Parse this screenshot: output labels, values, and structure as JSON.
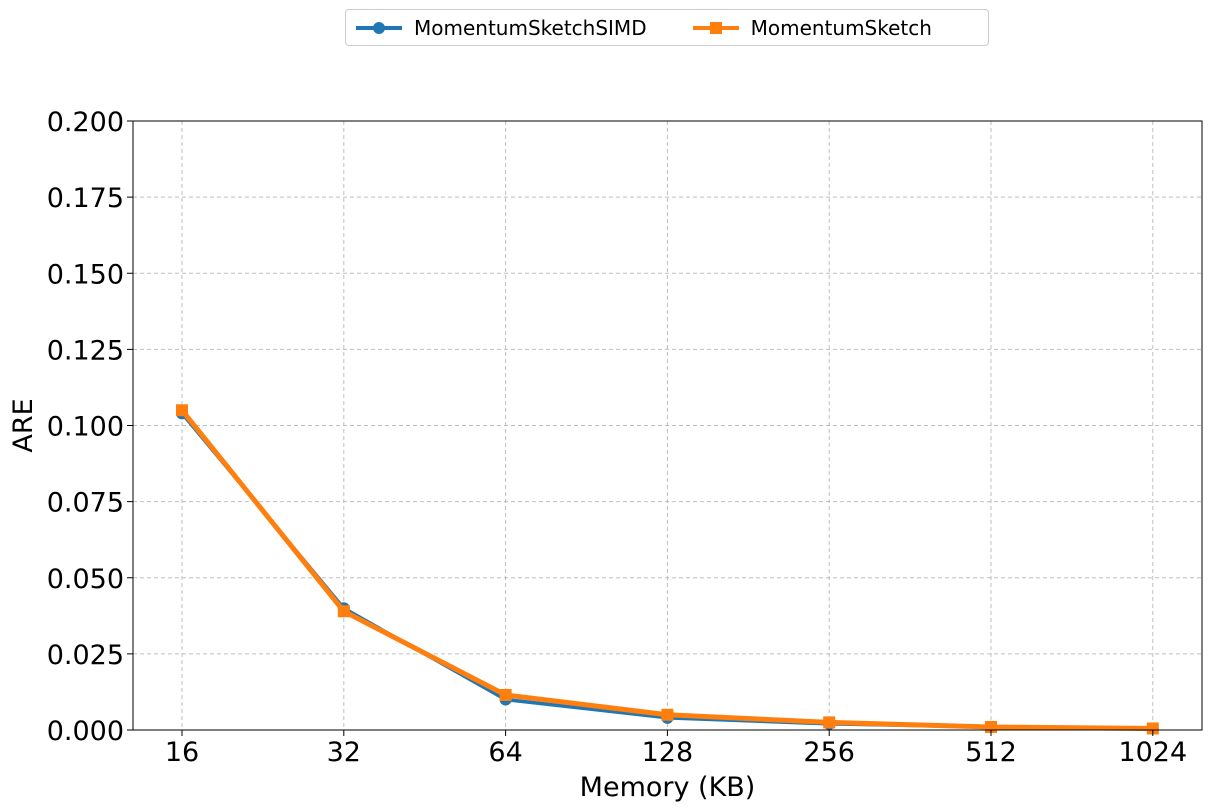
{
  "chart_data": {
    "type": "line",
    "categories": [
      "16",
      "32",
      "64",
      "128",
      "256",
      "512",
      "1024"
    ],
    "xlabel": "Memory (KB)",
    "ylabel": "ARE",
    "ylim": [
      0,
      0.2
    ],
    "yticks": [
      "0.000",
      "0.025",
      "0.050",
      "0.075",
      "0.100",
      "0.125",
      "0.150",
      "0.175",
      "0.200"
    ],
    "grid": true,
    "legend_position": "top-center",
    "series": [
      {
        "name": "MomentumSketchSIMD",
        "color": "#1f77b4",
        "marker": "circle",
        "values": [
          0.104,
          0.04,
          0.01,
          0.004,
          0.002,
          0.001,
          0.0005
        ]
      },
      {
        "name": "MomentumSketch",
        "color": "#ff7f0e",
        "marker": "square",
        "values": [
          0.105,
          0.039,
          0.0115,
          0.005,
          0.0025,
          0.001,
          0.0005
        ]
      }
    ]
  }
}
